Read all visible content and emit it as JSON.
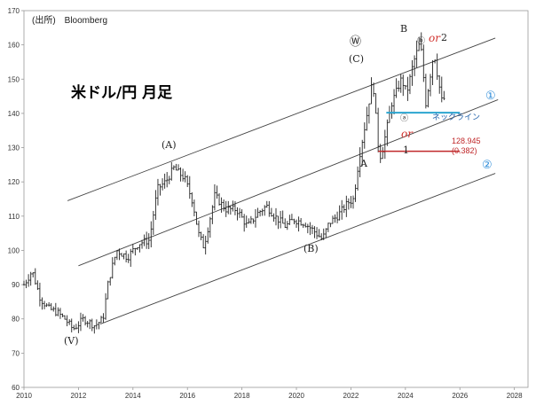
{
  "chart_data": {
    "type": "candlestick",
    "title": "米ドル/円 月足",
    "source": "(出所)　Bloomberg",
    "xlim": [
      2010,
      2028.5
    ],
    "ylim": [
      60,
      170
    ],
    "x_ticks": [
      "2010",
      "2012",
      "2014",
      "2016",
      "2018",
      "2020",
      "2022",
      "2024",
      "2026",
      "2028"
    ],
    "y_ticks": [
      "60",
      "70",
      "80",
      "90",
      "100",
      "110",
      "120",
      "130",
      "140",
      "150",
      "160",
      "170"
    ],
    "price_path": [
      [
        2010.0,
        90
      ],
      [
        2010.3,
        94
      ],
      [
        2010.6,
        86
      ],
      [
        2010.9,
        83
      ],
      [
        2011.2,
        82
      ],
      [
        2011.5,
        80
      ],
      [
        2011.8,
        77
      ],
      [
        2012.2,
        80
      ],
      [
        2012.6,
        78
      ],
      [
        2012.9,
        80
      ],
      [
        2013.1,
        91
      ],
      [
        2013.4,
        100
      ],
      [
        2013.8,
        98
      ],
      [
        2014.2,
        102
      ],
      [
        2014.6,
        103
      ],
      [
        2014.9,
        118
      ],
      [
        2015.2,
        120
      ],
      [
        2015.5,
        124
      ],
      [
        2015.9,
        121
      ],
      [
        2016.2,
        114
      ],
      [
        2016.4,
        105
      ],
      [
        2016.6,
        101
      ],
      [
        2016.9,
        112
      ],
      [
        2017.0,
        116
      ],
      [
        2017.4,
        112
      ],
      [
        2017.8,
        112
      ],
      [
        2018.2,
        107
      ],
      [
        2018.6,
        111
      ],
      [
        2018.9,
        113
      ],
      [
        2019.2,
        110
      ],
      [
        2019.6,
        107
      ],
      [
        2019.9,
        109
      ],
      [
        2020.3,
        108
      ],
      [
        2020.6,
        106
      ],
      [
        2020.95,
        103.2
      ],
      [
        2021.2,
        108
      ],
      [
        2021.5,
        110
      ],
      [
        2021.9,
        114
      ],
      [
        2022.1,
        115
      ],
      [
        2022.3,
        127
      ],
      [
        2022.55,
        138
      ],
      [
        2022.8,
        150
      ],
      [
        2023.0,
        131
      ],
      [
        2023.1,
        127
      ],
      [
        2023.5,
        143
      ],
      [
        2023.85,
        150
      ],
      [
        2024.05,
        146
      ],
      [
        2024.3,
        155
      ],
      [
        2024.55,
        161
      ],
      [
        2024.75,
        143
      ],
      [
        2024.95,
        153
      ],
      [
        2025.05,
        158
      ],
      [
        2025.2,
        150
      ],
      [
        2025.35,
        143
      ],
      [
        2025.45,
        145
      ]
    ],
    "channels": {
      "upper": {
        "x": [
          2011.6,
          2027.3
        ],
        "y": [
          114.5,
          162
        ]
      },
      "middle": {
        "x": [
          2012.0,
          2027.4
        ],
        "y": [
          95.5,
          144
        ]
      },
      "lower": {
        "x": [
          2012.8,
          2027.3
        ],
        "y": [
          78.5,
          122.5
        ]
      }
    },
    "neckline": {
      "y": 140.2,
      "x": [
        2023.3,
        2026.0
      ],
      "label": "ネックライン",
      "color": "#2ba5d0"
    },
    "level": {
      "y": 128.945,
      "x": [
        2023.0,
        2026.0
      ],
      "value": "128.945",
      "ratio": "(0.382)",
      "color": "#c0282a"
    },
    "labels": {
      "V": "(V)",
      "A_upper": "(A)",
      "B_upper": "(B)",
      "C_upper": "(C)",
      "W": "Ⓦ",
      "A": "A",
      "B": "B",
      "one": "1",
      "two": "2",
      "a": "ⓐ",
      "b": "ⓑ",
      "or1": "or",
      "or2": "or",
      "circle1": "①",
      "circle2": "②"
    }
  }
}
